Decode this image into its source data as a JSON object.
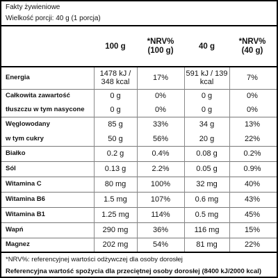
{
  "header": {
    "title": "Fakty żywieniowe",
    "serving": "Wielkość porcji: 40 g (1 porcja)"
  },
  "table": {
    "columns": [
      "100 g",
      "*NRV% (100 g)",
      "40 g",
      "*NRV% (40 g)"
    ],
    "rows": [
      {
        "labels": [
          "Energia"
        ],
        "values": [
          [
            "1478 kJ / 348 kcal",
            "17%",
            "591 kJ / 139 kcal",
            "7%"
          ]
        ]
      },
      {
        "labels": [
          "Całkowita zawartość",
          "tłuszczu w tym nasycone"
        ],
        "values": [
          [
            "0 g",
            "0%",
            "0 g",
            "0%"
          ],
          [
            "0 g",
            "0%",
            "0 g",
            "0%"
          ]
        ]
      },
      {
        "labels": [
          "Węglowodany",
          "w tym cukry"
        ],
        "values": [
          [
            "85 g",
            "33%",
            "34 g",
            "13%"
          ],
          [
            "50 g",
            "56%",
            "20 g",
            "22%"
          ]
        ]
      },
      {
        "labels": [
          "Białko"
        ],
        "values": [
          [
            "0.2 g",
            "0.4%",
            "0.08 g",
            "0.2%"
          ]
        ]
      },
      {
        "labels": [
          "Sól"
        ],
        "values": [
          [
            "0.13 g",
            "2.2%",
            "0.05 g",
            "0.9%"
          ]
        ]
      },
      {
        "labels": [
          "Witamina C"
        ],
        "values": [
          [
            "80 mg",
            "100%",
            "32 mg",
            "40%"
          ]
        ]
      },
      {
        "labels": [
          "Witamina B6"
        ],
        "values": [
          [
            "1.5 mg",
            "107%",
            "0.6 mg",
            "43%"
          ]
        ]
      },
      {
        "labels": [
          "Witamina B1"
        ],
        "values": [
          [
            "1.25 mg",
            "114%",
            "0.5 mg",
            "45%"
          ]
        ]
      },
      {
        "labels": [
          "Wapń"
        ],
        "values": [
          [
            "290 mg",
            "36%",
            "116 mg",
            "15%"
          ]
        ]
      },
      {
        "labels": [
          "Magnez"
        ],
        "values": [
          [
            "202 mg",
            "54%",
            "81 mg",
            "22%"
          ]
        ]
      }
    ]
  },
  "footer": {
    "note": "*NRV%: referencyjnej wartości odżywczej dla osoby dorosłej",
    "reference": "Referencyjna wartość spożycia dla przeciętnej osoby dorosłej (8400 kJ/2000 kcal)"
  }
}
